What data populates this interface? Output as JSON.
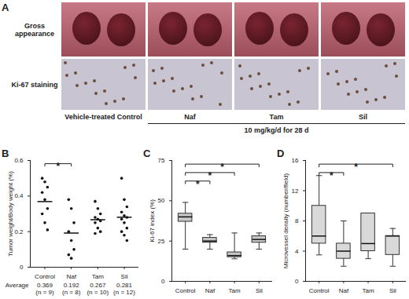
{
  "panel_a": {
    "letter": "A",
    "row_labels": [
      "Gross appearance",
      "Ki-67 staining"
    ],
    "column_labels": [
      "Vehicle-treated Control",
      "Naf",
      "Tam",
      "Sil"
    ],
    "treatment_label": "10 mg/kg/d for 28 d"
  },
  "chart_data": [
    {
      "panel": "B",
      "type": "scatter",
      "y_label": "Tumor weight/Body weight (%)",
      "categories": [
        "Control",
        "Naf",
        "Tam",
        "Sil"
      ],
      "points": [
        [
          0.5,
          0.48,
          0.45,
          0.42,
          0.38,
          0.33,
          0.3,
          0.25,
          0.21
        ],
        [
          0.38,
          0.33,
          0.25,
          0.2,
          0.15,
          0.1,
          0.07,
          0.05
        ],
        [
          0.37,
          0.33,
          0.3,
          0.28,
          0.27,
          0.26,
          0.25,
          0.22,
          0.2,
          0.19
        ],
        [
          0.5,
          0.38,
          0.34,
          0.31,
          0.29,
          0.28,
          0.27,
          0.25,
          0.22,
          0.2,
          0.18,
          0.15
        ]
      ],
      "mean_label": "Average",
      "means": [
        0.369,
        0.192,
        0.267,
        0.281
      ],
      "n_labels": [
        "(n = 9)",
        "(n = 8)",
        "(n = 10)",
        "(n = 12)"
      ],
      "color": "#111111",
      "significance": [
        {
          "from": "Control",
          "to": "Naf",
          "label": "*"
        }
      ],
      "ylim": [
        0,
        0.6
      ],
      "yticks": [
        0,
        0.2,
        0.4,
        0.6
      ]
    },
    {
      "panel": "C",
      "type": "box",
      "y_label": "Ki-67 index (%)",
      "categories": [
        "Control",
        "Naf",
        "Tam",
        "Sil"
      ],
      "min": [
        20,
        20,
        14,
        20
      ],
      "q1": [
        37,
        24,
        15,
        24
      ],
      "median": [
        40,
        25,
        16,
        26
      ],
      "q3": [
        42,
        27,
        18,
        28
      ],
      "max": [
        49,
        29,
        30,
        30
      ],
      "color": "#c8c8c8",
      "significance": [
        {
          "from": "Control",
          "to": "Naf",
          "label": "*"
        },
        {
          "from": "Control",
          "to": "Tam",
          "label": "*"
        },
        {
          "from": "Control",
          "to": "Sil",
          "label": "*"
        }
      ],
      "ylim": [
        0,
        75
      ],
      "yticks": [
        0,
        25,
        50,
        75
      ]
    },
    {
      "panel": "D",
      "type": "box",
      "y_label": "Microvessel density (number/field)",
      "categories": [
        "Control",
        "Naf",
        "Tam",
        "Sil"
      ],
      "min": [
        3.5,
        2,
        3,
        2
      ],
      "q1": [
        5,
        3,
        4,
        3.5
      ],
      "median": [
        6,
        4,
        5,
        6
      ],
      "q3": [
        10,
        5,
        9,
        6
      ],
      "max": [
        14,
        8,
        9,
        7
      ],
      "color": "#d9d9d9",
      "significance": [
        {
          "from": "Control",
          "to": "Naf",
          "label": "*"
        },
        {
          "from": "Control",
          "to": "Sil",
          "label": "*"
        }
      ],
      "ylim": [
        0,
        16
      ],
      "yticks": [
        0,
        4,
        8,
        12,
        16
      ]
    }
  ]
}
